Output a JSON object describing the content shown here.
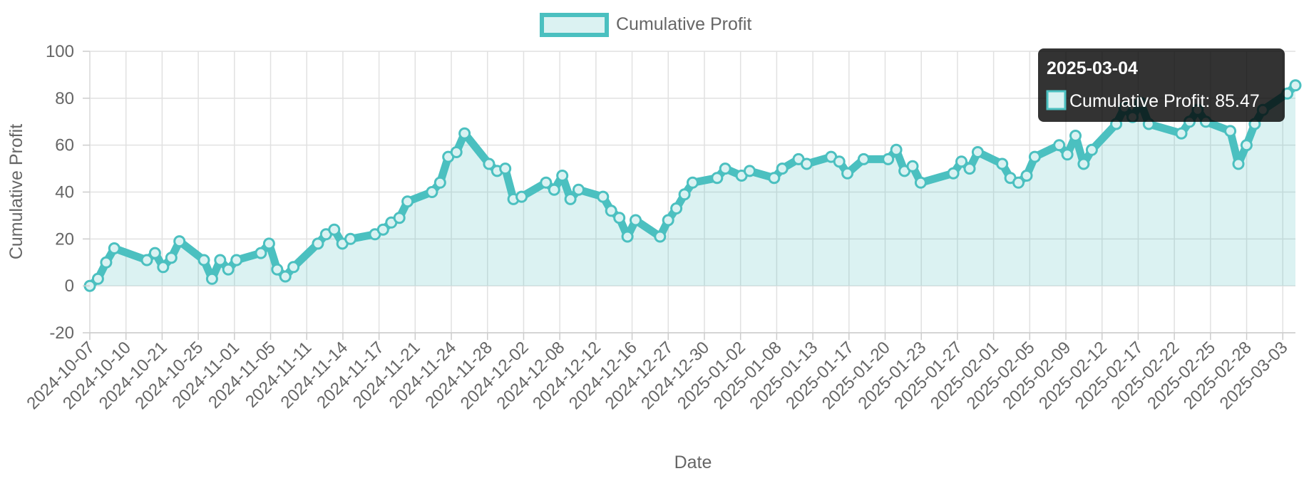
{
  "chart_data": {
    "type": "line",
    "legend": {
      "position": "top",
      "label": "Cumulative Profit"
    },
    "series": [
      {
        "name": "Cumulative Profit",
        "line_color": "#4bc0c0",
        "fill_color": "rgba(75,192,192,0.2)",
        "points": [
          {
            "x": "2024-10-07",
            "y": 0
          },
          {
            "x": "2024-10-08",
            "y": 3
          },
          {
            "x": "2024-10-09",
            "y": 10
          },
          {
            "x": "2024-10-10",
            "y": 16
          },
          {
            "x": "2024-10-14",
            "y": 11
          },
          {
            "x": "2024-10-15",
            "y": 14
          },
          {
            "x": "2024-10-16",
            "y": 8
          },
          {
            "x": "2024-10-17",
            "y": 12
          },
          {
            "x": "2024-10-18",
            "y": 19
          },
          {
            "x": "2024-10-21",
            "y": 11
          },
          {
            "x": "2024-10-22",
            "y": 3
          },
          {
            "x": "2024-10-23",
            "y": 11
          },
          {
            "x": "2024-10-24",
            "y": 7
          },
          {
            "x": "2024-10-25",
            "y": 11
          },
          {
            "x": "2024-10-28",
            "y": 14
          },
          {
            "x": "2024-10-29",
            "y": 18
          },
          {
            "x": "2024-10-30",
            "y": 7
          },
          {
            "x": "2024-10-31",
            "y": 4
          },
          {
            "x": "2024-11-01",
            "y": 8
          },
          {
            "x": "2024-11-04",
            "y": 18
          },
          {
            "x": "2024-11-05",
            "y": 22
          },
          {
            "x": "2024-11-06",
            "y": 24
          },
          {
            "x": "2024-11-07",
            "y": 18
          },
          {
            "x": "2024-11-08",
            "y": 20
          },
          {
            "x": "2024-11-11",
            "y": 22
          },
          {
            "x": "2024-11-12",
            "y": 24
          },
          {
            "x": "2024-11-13",
            "y": 27
          },
          {
            "x": "2024-11-14",
            "y": 29
          },
          {
            "x": "2024-11-15",
            "y": 36
          },
          {
            "x": "2024-11-18",
            "y": 40
          },
          {
            "x": "2024-11-19",
            "y": 44
          },
          {
            "x": "2024-11-20",
            "y": 55
          },
          {
            "x": "2024-11-21",
            "y": 57
          },
          {
            "x": "2024-11-22",
            "y": 65
          },
          {
            "x": "2024-11-25",
            "y": 52
          },
          {
            "x": "2024-11-26",
            "y": 49
          },
          {
            "x": "2024-11-27",
            "y": 50
          },
          {
            "x": "2024-11-28",
            "y": 37
          },
          {
            "x": "2024-11-29",
            "y": 38
          },
          {
            "x": "2024-12-02",
            "y": 44
          },
          {
            "x": "2024-12-03",
            "y": 41
          },
          {
            "x": "2024-12-04",
            "y": 47
          },
          {
            "x": "2024-12-05",
            "y": 37
          },
          {
            "x": "2024-12-06",
            "y": 41
          },
          {
            "x": "2024-12-09",
            "y": 38
          },
          {
            "x": "2024-12-10",
            "y": 32
          },
          {
            "x": "2024-12-11",
            "y": 29
          },
          {
            "x": "2024-12-12",
            "y": 21
          },
          {
            "x": "2024-12-13",
            "y": 28
          },
          {
            "x": "2024-12-16",
            "y": 21
          },
          {
            "x": "2024-12-17",
            "y": 28
          },
          {
            "x": "2024-12-18",
            "y": 33
          },
          {
            "x": "2024-12-19",
            "y": 39
          },
          {
            "x": "2024-12-20",
            "y": 44
          },
          {
            "x": "2024-12-23",
            "y": 46
          },
          {
            "x": "2024-12-24",
            "y": 50
          },
          {
            "x": "2024-12-26",
            "y": 47
          },
          {
            "x": "2024-12-27",
            "y": 49
          },
          {
            "x": "2024-12-30",
            "y": 46
          },
          {
            "x": "2024-12-31",
            "y": 50
          },
          {
            "x": "2025-01-02",
            "y": 54
          },
          {
            "x": "2025-01-03",
            "y": 52
          },
          {
            "x": "2025-01-06",
            "y": 55
          },
          {
            "x": "2025-01-07",
            "y": 53
          },
          {
            "x": "2025-01-08",
            "y": 48
          },
          {
            "x": "2025-01-10",
            "y": 54
          },
          {
            "x": "2025-01-13",
            "y": 54
          },
          {
            "x": "2025-01-14",
            "y": 58
          },
          {
            "x": "2025-01-15",
            "y": 49
          },
          {
            "x": "2025-01-16",
            "y": 51
          },
          {
            "x": "2025-01-17",
            "y": 44
          },
          {
            "x": "2025-01-21",
            "y": 48
          },
          {
            "x": "2025-01-22",
            "y": 53
          },
          {
            "x": "2025-01-23",
            "y": 50
          },
          {
            "x": "2025-01-24",
            "y": 57
          },
          {
            "x": "2025-01-27",
            "y": 52
          },
          {
            "x": "2025-01-28",
            "y": 46
          },
          {
            "x": "2025-01-29",
            "y": 44
          },
          {
            "x": "2025-01-30",
            "y": 47
          },
          {
            "x": "2025-01-31",
            "y": 55
          },
          {
            "x": "2025-02-03",
            "y": 60
          },
          {
            "x": "2025-02-04",
            "y": 56
          },
          {
            "x": "2025-02-05",
            "y": 64
          },
          {
            "x": "2025-02-06",
            "y": 52
          },
          {
            "x": "2025-02-07",
            "y": 58
          },
          {
            "x": "2025-02-10",
            "y": 69
          },
          {
            "x": "2025-02-11",
            "y": 76
          },
          {
            "x": "2025-02-12",
            "y": 72
          },
          {
            "x": "2025-02-13",
            "y": 78
          },
          {
            "x": "2025-02-14",
            "y": 69
          },
          {
            "x": "2025-02-18",
            "y": 65
          },
          {
            "x": "2025-02-19",
            "y": 70
          },
          {
            "x": "2025-02-20",
            "y": 75
          },
          {
            "x": "2025-02-21",
            "y": 70
          },
          {
            "x": "2025-02-24",
            "y": 66
          },
          {
            "x": "2025-02-25",
            "y": 52
          },
          {
            "x": "2025-02-26",
            "y": 60
          },
          {
            "x": "2025-02-27",
            "y": 69
          },
          {
            "x": "2025-02-28",
            "y": 75
          },
          {
            "x": "2025-03-03",
            "y": 82
          },
          {
            "x": "2025-03-04",
            "y": 85.47
          }
        ]
      }
    ],
    "x_tick_labels": [
      "2024-10-07",
      "2024-10-10",
      "2024-10-21",
      "2024-10-25",
      "2024-11-01",
      "2024-11-05",
      "2024-11-11",
      "2024-11-14",
      "2024-11-17",
      "2024-11-21",
      "2024-11-24",
      "2024-11-28",
      "2024-12-02",
      "2024-12-08",
      "2024-12-12",
      "2024-12-16",
      "2024-12-27",
      "2024-12-30",
      "2025-01-02",
      "2025-01-08",
      "2025-01-13",
      "2025-01-17",
      "2025-01-20",
      "2025-01-23",
      "2025-01-27",
      "2025-02-01",
      "2025-02-05",
      "2025-02-09",
      "2025-02-12",
      "2025-02-17",
      "2025-02-22",
      "2025-02-25",
      "2025-02-28",
      "2025-03-03"
    ],
    "y_ticks": [
      -20,
      0,
      20,
      40,
      60,
      80,
      100
    ],
    "ylim": [
      -20,
      100
    ],
    "xlabel": "Date",
    "ylabel": "Cumulative Profit",
    "grid": true,
    "tooltip": {
      "title": "2025-03-04",
      "label": "Cumulative Profit: 85.47",
      "background": "rgba(0,0,0,0.8)"
    }
  }
}
